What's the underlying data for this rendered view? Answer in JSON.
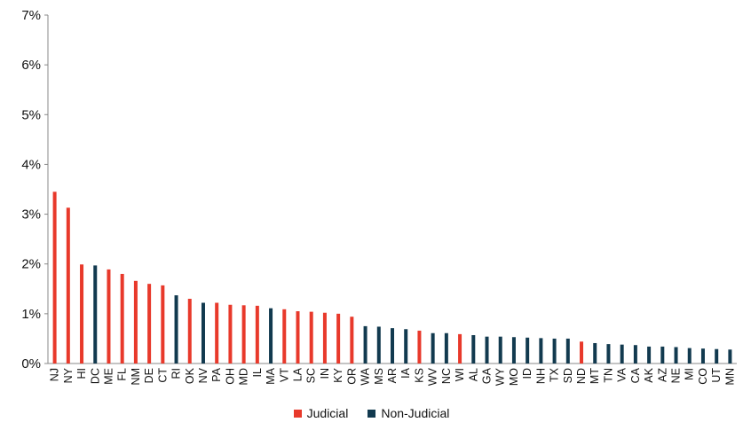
{
  "chart_data": {
    "type": "bar",
    "y_ticks": [
      "0%",
      "1%",
      "2%",
      "3%",
      "4%",
      "5%",
      "6%",
      "7%"
    ],
    "ylim": [
      0,
      7
    ],
    "grid": false,
    "legend_position": "bottom",
    "series": [
      {
        "name": "Judicial",
        "color": "#e8392b"
      },
      {
        "name": "Non-Judicial",
        "color": "#123a4f"
      }
    ],
    "bars": [
      {
        "state": "NJ",
        "value": 3.45,
        "series": "Judicial"
      },
      {
        "state": "NY",
        "value": 3.13,
        "series": "Judicial"
      },
      {
        "state": "HI",
        "value": 1.99,
        "series": "Judicial"
      },
      {
        "state": "DC",
        "value": 1.97,
        "series": "Non-Judicial"
      },
      {
        "state": "ME",
        "value": 1.89,
        "series": "Judicial"
      },
      {
        "state": "FL",
        "value": 1.8,
        "series": "Judicial"
      },
      {
        "state": "NM",
        "value": 1.66,
        "series": "Judicial"
      },
      {
        "state": "DE",
        "value": 1.6,
        "series": "Judicial"
      },
      {
        "state": "CT",
        "value": 1.57,
        "series": "Judicial"
      },
      {
        "state": "RI",
        "value": 1.37,
        "series": "Non-Judicial"
      },
      {
        "state": "OK",
        "value": 1.3,
        "series": "Judicial"
      },
      {
        "state": "NV",
        "value": 1.22,
        "series": "Non-Judicial"
      },
      {
        "state": "PA",
        "value": 1.22,
        "series": "Judicial"
      },
      {
        "state": "OH",
        "value": 1.18,
        "series": "Judicial"
      },
      {
        "state": "MD",
        "value": 1.17,
        "series": "Judicial"
      },
      {
        "state": "IL",
        "value": 1.16,
        "series": "Judicial"
      },
      {
        "state": "MA",
        "value": 1.11,
        "series": "Non-Judicial"
      },
      {
        "state": "VT",
        "value": 1.09,
        "series": "Judicial"
      },
      {
        "state": "LA",
        "value": 1.05,
        "series": "Judicial"
      },
      {
        "state": "SC",
        "value": 1.04,
        "series": "Judicial"
      },
      {
        "state": "IN",
        "value": 1.02,
        "series": "Judicial"
      },
      {
        "state": "KY",
        "value": 1.0,
        "series": "Judicial"
      },
      {
        "state": "OR",
        "value": 0.94,
        "series": "Judicial"
      },
      {
        "state": "WA",
        "value": 0.75,
        "series": "Non-Judicial"
      },
      {
        "state": "MS",
        "value": 0.74,
        "series": "Non-Judicial"
      },
      {
        "state": "AR",
        "value": 0.71,
        "series": "Non-Judicial"
      },
      {
        "state": "IA",
        "value": 0.69,
        "series": "Non-Judicial"
      },
      {
        "state": "KS",
        "value": 0.66,
        "series": "Judicial"
      },
      {
        "state": "WV",
        "value": 0.61,
        "series": "Non-Judicial"
      },
      {
        "state": "NC",
        "value": 0.61,
        "series": "Non-Judicial"
      },
      {
        "state": "WI",
        "value": 0.59,
        "series": "Judicial"
      },
      {
        "state": "AL",
        "value": 0.57,
        "series": "Non-Judicial"
      },
      {
        "state": "GA",
        "value": 0.54,
        "series": "Non-Judicial"
      },
      {
        "state": "WY",
        "value": 0.54,
        "series": "Non-Judicial"
      },
      {
        "state": "MO",
        "value": 0.53,
        "series": "Non-Judicial"
      },
      {
        "state": "ID",
        "value": 0.52,
        "series": "Non-Judicial"
      },
      {
        "state": "NH",
        "value": 0.51,
        "series": "Non-Judicial"
      },
      {
        "state": "TX",
        "value": 0.5,
        "series": "Non-Judicial"
      },
      {
        "state": "SD",
        "value": 0.5,
        "series": "Non-Judicial"
      },
      {
        "state": "ND",
        "value": 0.44,
        "series": "Judicial"
      },
      {
        "state": "MT",
        "value": 0.41,
        "series": "Non-Judicial"
      },
      {
        "state": "TN",
        "value": 0.39,
        "series": "Non-Judicial"
      },
      {
        "state": "VA",
        "value": 0.38,
        "series": "Non-Judicial"
      },
      {
        "state": "CA",
        "value": 0.37,
        "series": "Non-Judicial"
      },
      {
        "state": "AK",
        "value": 0.34,
        "series": "Non-Judicial"
      },
      {
        "state": "AZ",
        "value": 0.34,
        "series": "Non-Judicial"
      },
      {
        "state": "NE",
        "value": 0.33,
        "series": "Non-Judicial"
      },
      {
        "state": "MI",
        "value": 0.31,
        "series": "Non-Judicial"
      },
      {
        "state": "CO",
        "value": 0.3,
        "series": "Non-Judicial"
      },
      {
        "state": "UT",
        "value": 0.29,
        "series": "Non-Judicial"
      },
      {
        "state": "MN",
        "value": 0.28,
        "series": "Non-Judicial"
      }
    ]
  }
}
